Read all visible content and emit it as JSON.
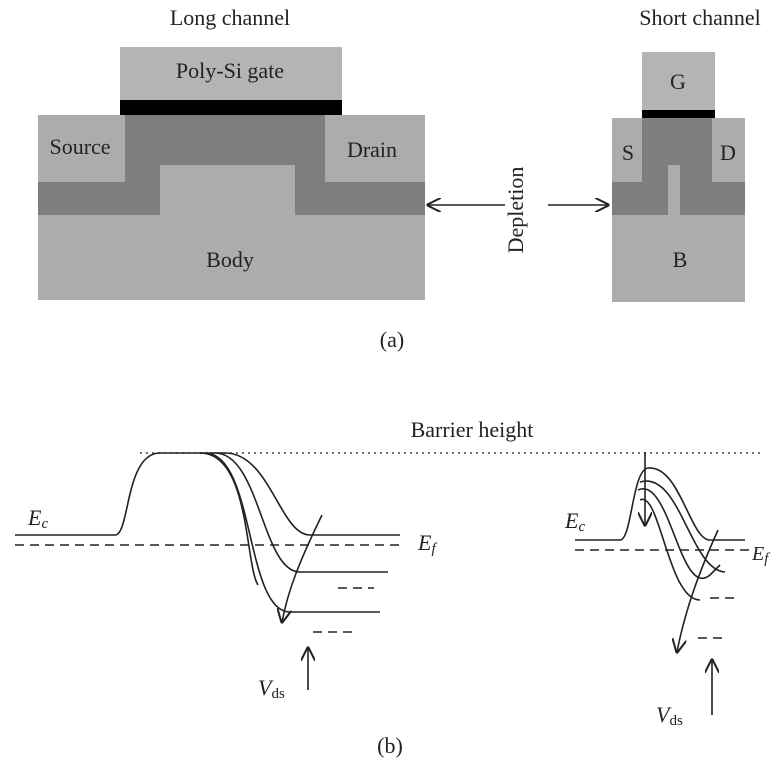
{
  "panel_a": {
    "long": {
      "title": "Long channel",
      "gate": "Poly-Si gate",
      "source": "Source",
      "drain": "Drain",
      "body": "Body"
    },
    "short": {
      "title": "Short channel",
      "gate": "G",
      "source": "S",
      "drain": "D",
      "body": "B"
    },
    "depletion": "Depletion",
    "caption": "(a)"
  },
  "panel_b": {
    "barrier": "Barrier height",
    "long": {
      "ec": {
        "base": "E",
        "sub": "c"
      },
      "ef": {
        "base": "E",
        "sub": "f"
      },
      "vds": {
        "base": "V",
        "sub": "ds"
      }
    },
    "short": {
      "ec": {
        "base": "E",
        "sub": "c"
      },
      "ef": {
        "base": "E",
        "sub": "f"
      },
      "vds": {
        "base": "V",
        "sub": "ds"
      }
    },
    "caption": "(b)"
  }
}
